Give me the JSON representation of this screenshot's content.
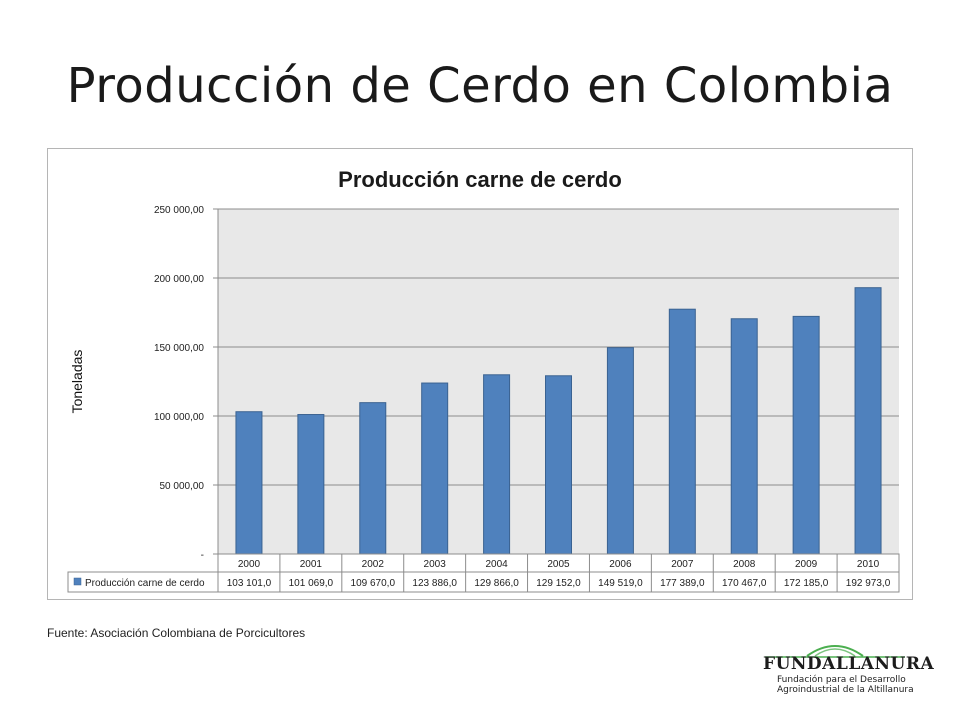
{
  "slide": {
    "title": "Producción de Cerdo en Colombia",
    "source": "Fuente: Asociación Colombiana de Porcicultores"
  },
  "logo": {
    "name": "FUNDALLANURA",
    "tagline_1": "Fundación para el Desarrollo",
    "tagline_2": "Agroindustrial de la Altillanura",
    "colors": {
      "text": "#1c1c1c",
      "arc": "#4caf50"
    }
  },
  "chart_data": {
    "type": "bar",
    "title": "Producción carne de cerdo",
    "ylabel": "Toneladas",
    "xlabel": "",
    "categories": [
      "2000",
      "2001",
      "2002",
      "2003",
      "2004",
      "2005",
      "2006",
      "2007",
      "2008",
      "2009",
      "2010"
    ],
    "series": [
      {
        "name": "Producción carne de cerdo",
        "values": [
          103101.0,
          101069.0,
          109670.0,
          123886.0,
          129866.0,
          129152.0,
          149519.0,
          177389.0,
          170467.0,
          172185.0,
          192973.0
        ],
        "value_labels": [
          "103 101,0",
          "101 069,0",
          "109 670,0",
          "123 886,0",
          "129 866,0",
          "129 152,0",
          "149 519,0",
          "177 389,0",
          "170 467,0",
          "172 185,0",
          "192 973,0"
        ],
        "color": "#4f81bd"
      }
    ],
    "ylim": [
      0,
      250000
    ],
    "yticks": [
      0,
      50000,
      100000,
      150000,
      200000,
      250000
    ],
    "ytick_labels": [
      "-",
      "50 000,00",
      "100 000,00",
      "150 000,00",
      "200 000,00",
      "250 000,00"
    ],
    "grid": true,
    "plot_background": "#e8e8e8",
    "data_table": true
  }
}
